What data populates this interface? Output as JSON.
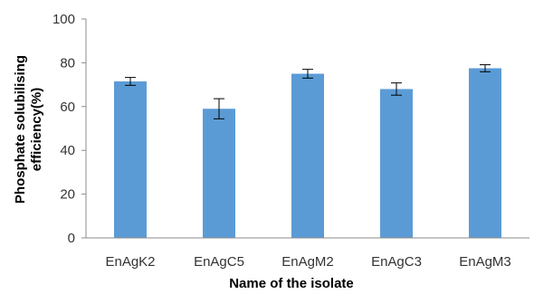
{
  "chart_data": {
    "type": "bar",
    "title": "",
    "xlabel": "Name of the isolate",
    "ylabel_lines": [
      "Phosphate solubilising",
      "efficiency(%)"
    ],
    "categories": [
      "EnAgK2",
      "EnAgC5",
      "EnAgM2",
      "EnAgC3",
      "EnAgM3"
    ],
    "values": [
      71.5,
      59,
      75,
      68,
      77.5
    ],
    "error": [
      1.8,
      4.6,
      2.0,
      2.8,
      1.6
    ],
    "ylim": [
      0,
      100
    ],
    "yticks": [
      0,
      20,
      40,
      60,
      80,
      100
    ],
    "grid": false,
    "legend": "none",
    "bar_color": "#5b9bd5",
    "axis_color": "#8c8c8c"
  }
}
